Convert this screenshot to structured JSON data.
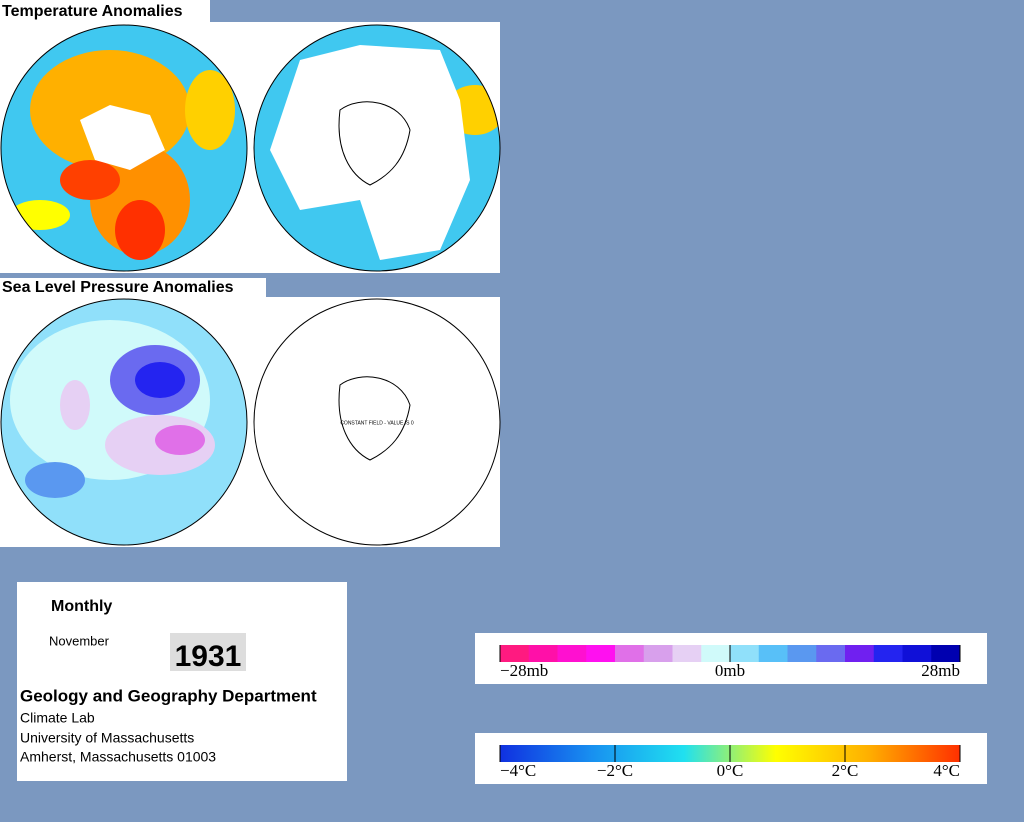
{
  "panels": [
    {
      "title": "Temperature Anomalies"
    },
    {
      "title": "Sea Level Pressure Anomalies",
      "note": "CONSTANT FIELD - VALUE IS 0"
    }
  ],
  "info": {
    "period": "Monthly",
    "month": "November",
    "year": "1931",
    "department": "Geology and Geography Department",
    "address": [
      "Climate Lab",
      "University of Massachusetts",
      "Amherst, Massachusetts 01003"
    ]
  },
  "legends": [
    {
      "labels": [
        "−28mb",
        "0mb",
        "28mb"
      ],
      "colors": [
        "#ff1a80",
        "#ff10a8",
        "#ff10d0",
        "#ff10f0",
        "#e070e8",
        "#d8a0ec",
        "#e6d0f4",
        "#d0fafa",
        "#90e0fa",
        "#58c0f8",
        "#5a98f0",
        "#6a6af0",
        "#7020f0",
        "#2424f0",
        "#1010d8",
        "#0000b0"
      ]
    },
    {
      "labels": [
        "−4°C",
        "−2°C",
        "0°C",
        "2°C",
        "4°C"
      ],
      "colors": [
        "#1030e0",
        "#1890f0",
        "#20e0f0",
        "#ffff00",
        "#ffb000",
        "#ff3000"
      ]
    }
  ]
}
